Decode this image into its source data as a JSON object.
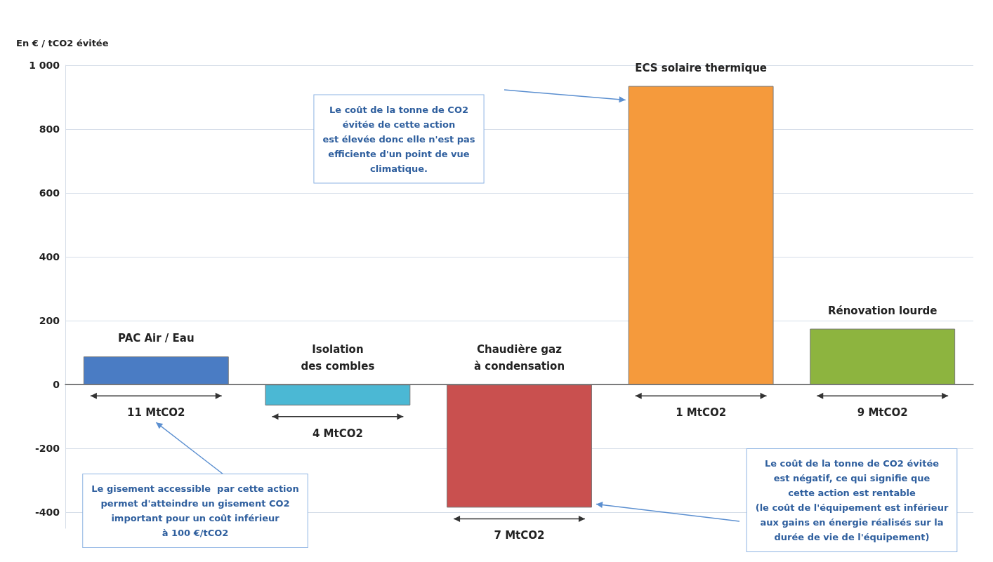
{
  "chart_data": {
    "type": "bar",
    "ylabel": "En € / tCO2 évitée",
    "categories": [
      "PAC Air / Eau",
      "Isolation\ndes combles",
      "Chaudière gaz\nà condensation",
      "ECS solaire thermique",
      "Rénovation lourde"
    ],
    "values": [
      88,
      -65,
      -385,
      935,
      175
    ],
    "colors": [
      "#4a7cc4",
      "#4bb8d4",
      "#c9504f",
      "#f59a3c",
      "#8db43f"
    ],
    "ylim": [
      -450,
      1000
    ],
    "yticks": [
      -400,
      -200,
      0,
      200,
      400,
      600,
      800,
      {
        "value": 1000,
        "label": "1 000"
      }
    ],
    "grid": "y",
    "tick_labels": "y",
    "annotations": [
      "11 MtCO2",
      "4 MtCO2",
      "7 MtCO2",
      "1 MtCO2",
      "9 MtCO2",
      "Le coût de la tonne de CO2\névitée de cette action\nest élevée donc elle n'est pas\nefficiente d'un point de vue\nclimatique.",
      "Le gisement accessible  par cette action\npermet d'atteindre un gisement CO2\nimportant pour un coût inférieur\nà 100 €/tCO2",
      "Le coût de la tonne de CO2 évitée\nest négatif, ce qui signifie que\ncette action est rentable\n(le coût de l'équipement est inférieur\naux gains en énergie réalisés sur la\ndurée de vie de l'équipement)"
    ]
  }
}
